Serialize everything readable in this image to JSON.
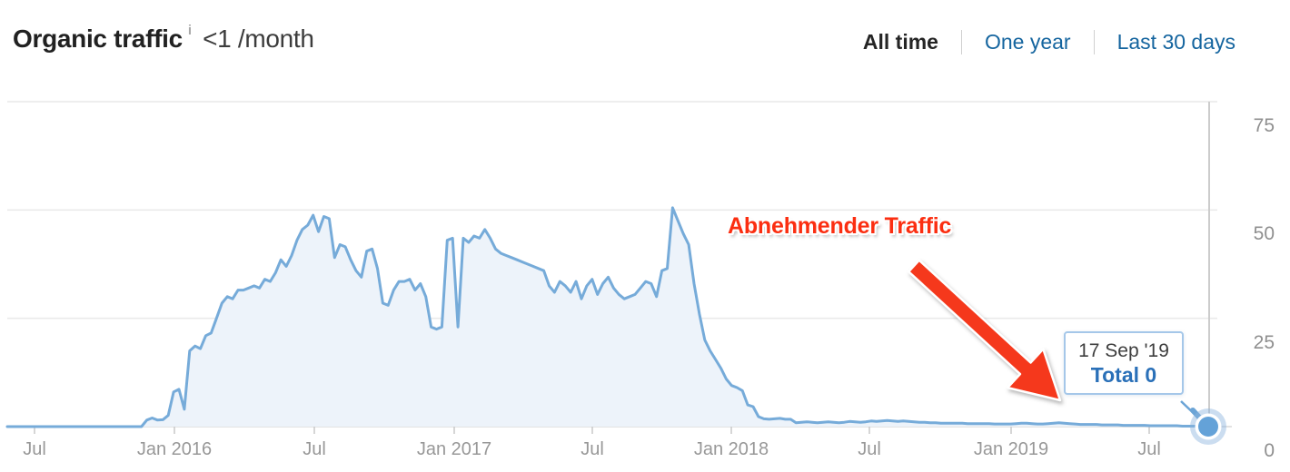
{
  "header": {
    "title": "Organic traffic",
    "info_icon": "i",
    "subtitle": "<1 /month",
    "ranges": [
      {
        "label": "All time",
        "active": true
      },
      {
        "label": "One year",
        "active": false
      },
      {
        "label": "Last 30 days",
        "active": false
      }
    ]
  },
  "annotation": {
    "text": "Abnehmender Traffic",
    "color": "#fb2e11",
    "arrow_color": "#f5381c"
  },
  "tooltip": {
    "date": "17 Sep '19",
    "total": "Total 0"
  },
  "chart_data": {
    "type": "area",
    "title": "Organic traffic over time",
    "xlabel": "",
    "ylabel": "",
    "ylim": [
      0,
      75
    ],
    "y_ticks": [
      "75",
      "50",
      "25",
      "0"
    ],
    "x_ticks": [
      "Jul",
      "Jan 2016",
      "Jul",
      "Jan 2017",
      "Jul",
      "Jan 2018",
      "Jul",
      "Jan 2019",
      "Jul"
    ],
    "x_range": [
      "Jun 2015",
      "17 Sep 2019"
    ],
    "grid": true,
    "legend": "none",
    "line_color": "#76abd9",
    "fill_color": "#edf3fa",
    "marker": {
      "date": "17 Sep '19",
      "value": 0
    },
    "values": [
      0,
      0,
      0,
      0,
      0,
      0,
      0,
      0,
      0,
      0,
      0,
      0,
      0,
      0,
      0,
      0,
      0,
      0,
      0,
      0,
      0,
      0,
      0,
      0,
      0,
      0,
      1.5,
      2,
      1.5,
      1.6,
      2.6,
      8,
      8.6,
      4,
      17.5,
      18.6,
      18,
      21,
      21.6,
      25,
      28.5,
      30,
      29.5,
      31.5,
      31.5,
      32,
      32.5,
      32,
      34,
      33.5,
      35.5,
      38.5,
      37,
      39.5,
      43,
      45.5,
      46.5,
      48.8,
      45,
      48.5,
      48,
      39,
      42,
      41.5,
      38.5,
      36,
      34.5,
      40.5,
      41,
      36.5,
      28.5,
      28,
      31.5,
      33.5,
      33.5,
      34,
      31.5,
      33,
      30,
      23,
      22.5,
      23,
      43,
      43.5,
      23,
      43.5,
      42.5,
      44,
      43.5,
      45.5,
      43.5,
      41,
      40,
      39.5,
      39,
      38.5,
      38,
      37.5,
      37,
      36.5,
      36,
      32.5,
      31,
      33.5,
      32.5,
      31,
      33.5,
      29.5,
      32.5,
      34,
      30.5,
      33,
      34.5,
      32,
      30.5,
      29.5,
      30,
      30.5,
      32,
      33.5,
      33,
      30,
      36,
      36.5,
      50.5,
      47.5,
      44.5,
      42,
      33,
      26,
      20,
      17.5,
      15.5,
      13.5,
      11,
      9.5,
      9,
      8.3,
      5,
      4.6,
      2.3,
      1.8,
      1.7,
      1.8,
      1.9,
      1.7,
      1.7,
      0.9,
      1,
      1.1,
      1,
      0.9,
      1,
      1.1,
      1,
      0.9,
      1,
      1.2,
      1.1,
      1,
      1.1,
      1.3,
      1.2,
      1.3,
      1.4,
      1.3,
      1.2,
      1.3,
      1.2,
      1.1,
      1,
      1,
      0.9,
      0.9,
      0.8,
      0.8,
      0.8,
      0.8,
      0.8,
      0.7,
      0.7,
      0.7,
      0.7,
      0.7,
      0.6,
      0.6,
      0.6,
      0.6,
      0.7,
      0.8,
      0.8,
      0.7,
      0.6,
      0.6,
      0.7,
      0.8,
      0.9,
      0.8,
      0.7,
      0.6,
      0.5,
      0.5,
      0.5,
      0.5,
      0.4,
      0.4,
      0.4,
      0.4,
      0.3,
      0.3,
      0.3,
      0.3,
      0.3,
      0.2,
      0.2,
      0.2,
      0.2,
      0.2,
      0.2,
      0.1,
      0.1,
      0.1,
      0.1,
      0.1,
      0
    ]
  }
}
